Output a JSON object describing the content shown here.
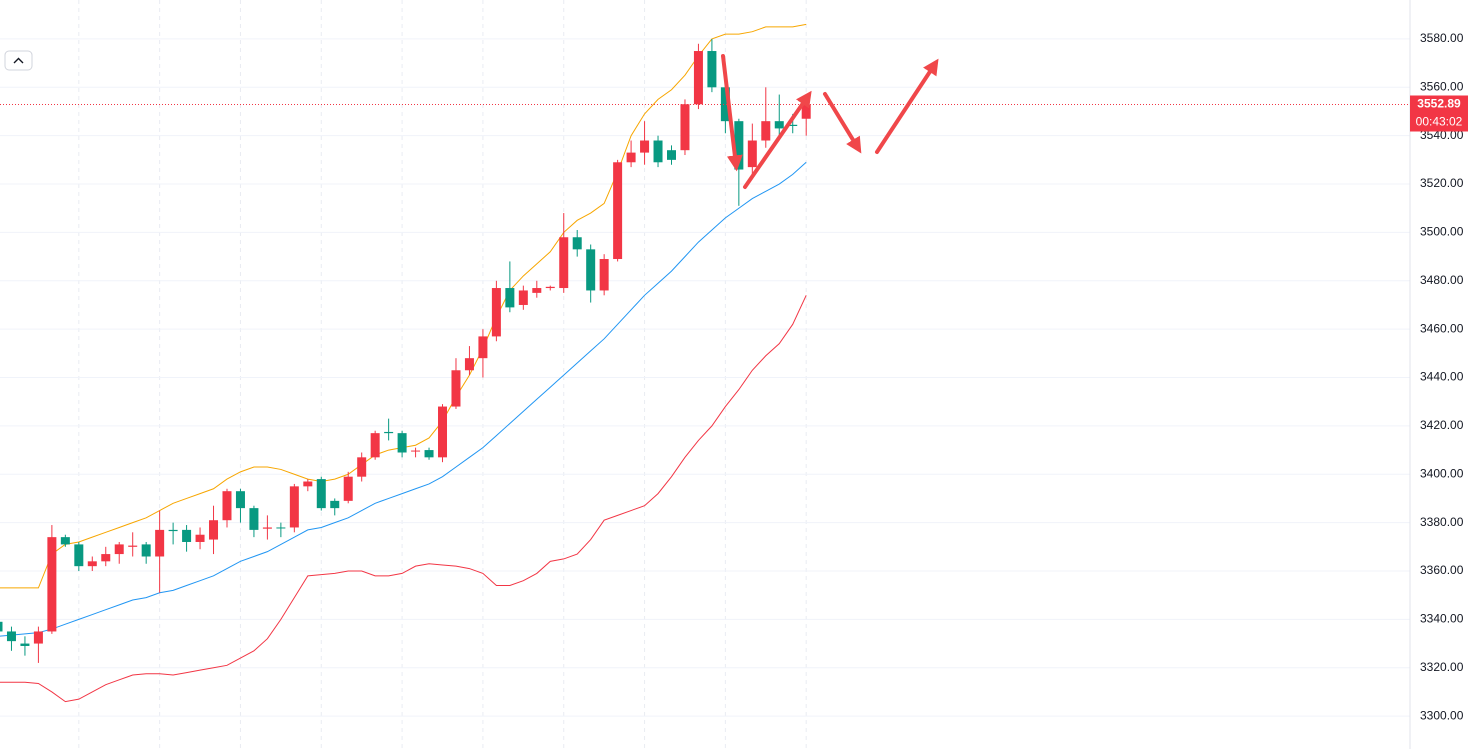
{
  "chart_data": {
    "type": "candlestick",
    "up_color": "#f23645",
    "down_color": "#089981",
    "ylim": [
      3286.4,
      3596.1
    ],
    "yticks": [
      {
        "value": 3300,
        "label": "3300.00"
      },
      {
        "value": 3320,
        "label": "3320.00"
      },
      {
        "value": 3340,
        "label": "3340.00"
      },
      {
        "value": 3360,
        "label": "3360.00"
      },
      {
        "value": 3380,
        "label": "3380.00"
      },
      {
        "value": 3400,
        "label": "3400.00"
      },
      {
        "value": 3420,
        "label": "3420.00"
      },
      {
        "value": 3440,
        "label": "3440.00"
      },
      {
        "value": 3460,
        "label": "3460.00"
      },
      {
        "value": 3480,
        "label": "3480.00"
      },
      {
        "value": 3500,
        "label": "3500.00"
      },
      {
        "value": 3520,
        "label": "3520.00"
      },
      {
        "value": 3540,
        "label": "3540.00"
      },
      {
        "value": 3560,
        "label": "3560.00"
      },
      {
        "value": 3580,
        "label": "3580.00"
      }
    ],
    "grid": true,
    "open": [
      3339,
      3335,
      3330,
      3330,
      3335,
      3374,
      3371,
      3362,
      3364,
      3367,
      3370,
      3371,
      3366,
      3377,
      3377,
      3372,
      3373,
      3381,
      3393,
      3386,
      3377.5,
      3378,
      3378,
      3395,
      3398,
      3389,
      3389,
      3399,
      3407,
      3417.5,
      3417,
      3409.5,
      3410,
      3407,
      3428,
      3443,
      3448,
      3457,
      3477,
      3470,
      3475,
      3477,
      3477,
      3498,
      3493,
      3476,
      3489,
      3529,
      3533,
      3538,
      3534,
      3534,
      3553,
      3575,
      3560,
      3546,
      3527,
      3538,
      3546,
      3544.5,
      3547
    ],
    "high": [
      3340,
      3337,
      3333,
      3337,
      3379,
      3375,
      3372,
      3366,
      3370,
      3372,
      3376,
      3372,
      3385,
      3380,
      3379,
      3378,
      3387,
      3394,
      3394,
      3387,
      3383,
      3380,
      3396,
      3398,
      3399,
      3390,
      3401,
      3409,
      3418,
      3423,
      3418,
      3411,
      3411,
      3429,
      3448,
      3453,
      3460,
      3480,
      3488,
      3478,
      3480,
      3478,
      3508,
      3501,
      3495,
      3491,
      3530,
      3538,
      3546,
      3540,
      3536,
      3555,
      3578,
      3580,
      3562,
      3547,
      3545,
      3560,
      3557,
      3549,
      3553
    ],
    "low": [
      3333,
      3327,
      3325,
      3322,
      3334,
      3370,
      3360,
      3360,
      3362,
      3363,
      3366,
      3363,
      3351,
      3371,
      3368,
      3369,
      3367,
      3378,
      3380,
      3374,
      3373,
      3374,
      3376,
      3393,
      3385,
      3383,
      3388,
      3397,
      3406,
      3414,
      3407,
      3407,
      3406,
      3405,
      3427,
      3441,
      3440,
      3455,
      3467,
      3468,
      3473,
      3476,
      3475,
      3490,
      3471,
      3474,
      3488,
      3527,
      3528,
      3527,
      3528,
      3532,
      3551,
      3558,
      3541,
      3511,
      3522,
      3535,
      3540,
      3541,
      3540
    ],
    "close": [
      3335,
      3331,
      3329,
      3335,
      3374,
      3371,
      3362,
      3364,
      3367,
      3371,
      3370.5,
      3366,
      3377,
      3376.5,
      3372,
      3375,
      3381,
      3393,
      3386,
      3377,
      3378,
      3377.8,
      3395,
      3397,
      3386,
      3386,
      3399,
      3407,
      3417,
      3417,
      3409,
      3409.8,
      3407,
      3428,
      3443,
      3448,
      3457,
      3477,
      3469,
      3476,
      3477,
      3477.5,
      3498,
      3493,
      3476,
      3489,
      3529,
      3533,
      3538,
      3529,
      3530,
      3553,
      3575,
      3560,
      3546,
      3526,
      3538,
      3546,
      3543,
      3544,
      3552.89
    ],
    "lines": [
      {
        "color": "#f7a600",
        "values": [
          3353,
          3353,
          3353,
          3353,
          3367,
          3371,
          3372,
          3374,
          3376,
          3378,
          3380,
          3382,
          3385,
          3388,
          3390,
          3392,
          3394,
          3398,
          3401,
          3403,
          3403,
          3402,
          3400,
          3398,
          3397,
          3398,
          3400,
          3404,
          3408,
          3410,
          3411,
          3412,
          3415,
          3422,
          3432,
          3441,
          3452,
          3465,
          3476,
          3482,
          3487,
          3492,
          3500,
          3505,
          3508,
          3512,
          3525,
          3540,
          3549,
          3555,
          3559,
          3565,
          3573,
          3580,
          3582,
          3582,
          3583,
          3585,
          3585,
          3585,
          3586
        ]
      },
      {
        "color": "#2196f3",
        "values": [
          3333,
          3333.5,
          3334,
          3334.5,
          3336,
          3338,
          3340,
          3342,
          3344,
          3346,
          3348,
          3349,
          3351,
          3352,
          3354,
          3356,
          3358,
          3361,
          3364,
          3366,
          3368,
          3371,
          3374,
          3377,
          3378,
          3380,
          3382,
          3385,
          3388,
          3390,
          3392,
          3394,
          3396,
          3399,
          3403,
          3407,
          3411,
          3416,
          3421,
          3426,
          3431,
          3436,
          3441,
          3446,
          3451,
          3456,
          3462,
          3468,
          3474,
          3479,
          3484,
          3490,
          3496,
          3501,
          3506,
          3510,
          3514,
          3517,
          3520,
          3524,
          3529
        ]
      },
      {
        "color": "#f23645",
        "values": [
          3314,
          3314,
          3314,
          3313.5,
          3310,
          3306,
          3307,
          3310,
          3313,
          3315,
          3317,
          3317.5,
          3317.5,
          3317,
          3318,
          3319,
          3320,
          3321,
          3324,
          3327,
          3332,
          3340,
          3349,
          3358,
          3358.5,
          3359,
          3360,
          3360,
          3358,
          3358,
          3359,
          3362,
          3363,
          3362.5,
          3362,
          3361,
          3359,
          3354,
          3354,
          3356,
          3359,
          3364,
          3365,
          3367,
          3373,
          3381,
          3383,
          3385,
          3387,
          3392,
          3399,
          3407,
          3414,
          3420,
          3428,
          3435,
          3443,
          3449,
          3454,
          3462,
          3474
        ]
      }
    ],
    "last_price": 3552.89,
    "countdown": "00:43:02"
  }
}
